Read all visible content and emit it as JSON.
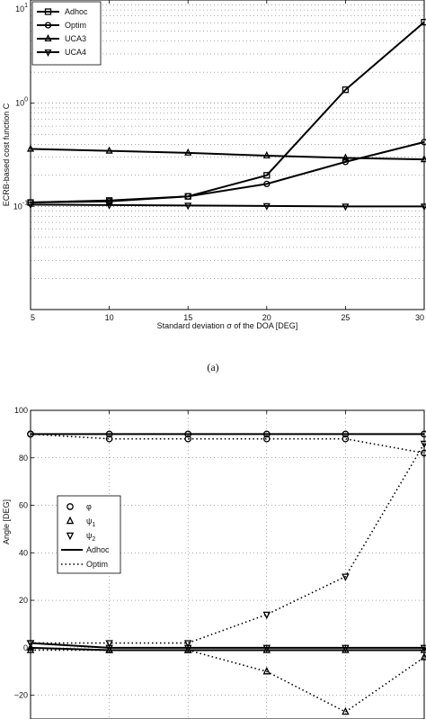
{
  "caption_a": "(a)",
  "chart_data": [
    {
      "type": "line",
      "xlabel": "Standard deviation σ of the DOA [DEG]",
      "ylabel": "ECRB-based cost function C",
      "yscale": "log",
      "x": [
        5,
        10,
        15,
        20,
        25,
        30
      ],
      "xlim": [
        5,
        30
      ],
      "ylim": [
        0.01,
        10
      ],
      "x_ticks": [
        "5",
        "10",
        "15",
        "20",
        "25",
        "30"
      ],
      "y_ticks": [
        {
          "base": "10",
          "exp": "-1",
          "value": 0.1
        },
        {
          "base": "10",
          "exp": "0",
          "value": 1
        },
        {
          "base": "10",
          "exp": "1",
          "value": 10
        }
      ],
      "grid": "y-major-and-minor",
      "legend_position": "top-left",
      "series": [
        {
          "name": "Adhoc",
          "values": [
            0.109,
            0.114,
            0.125,
            0.2,
            1.35,
            6.1
          ],
          "marker": "square",
          "dash": "solid"
        },
        {
          "name": "Optim",
          "values": [
            0.109,
            0.112,
            0.125,
            0.165,
            0.27,
            0.42
          ],
          "marker": "circle",
          "dash": "solid"
        },
        {
          "name": "UCA3",
          "values": [
            0.36,
            0.345,
            0.33,
            0.31,
            0.295,
            0.285
          ],
          "marker": "triangle-up",
          "dash": "solid"
        },
        {
          "name": "UCA4",
          "values": [
            0.104,
            0.103,
            0.102,
            0.101,
            0.1,
            0.1
          ],
          "marker": "triangle-down",
          "dash": "solid"
        }
      ]
    },
    {
      "type": "line",
      "ylabel": "Angle [DEG]",
      "x": [
        5,
        10,
        15,
        20,
        25,
        30
      ],
      "xlim": [
        5,
        30
      ],
      "ylim": [
        -30,
        100
      ],
      "y_ticks": [
        "−20",
        "0",
        "20",
        "40",
        "60",
        "80",
        "100"
      ],
      "grid": "on",
      "legend_position": "left",
      "legend": [
        {
          "label": "φ",
          "sub": "",
          "marker": "circle"
        },
        {
          "label": "ψ",
          "sub": "1",
          "marker": "triangle-up"
        },
        {
          "label": "ψ",
          "sub": "2",
          "marker": "triangle-down"
        },
        {
          "label": "Adhoc",
          "sub": "",
          "line": "solid"
        },
        {
          "label": "Optim",
          "sub": "",
          "line": "dotted"
        }
      ],
      "series": [
        {
          "quantity": "φ",
          "method": "Adhoc",
          "values": [
            90,
            90,
            90,
            90,
            90,
            90
          ],
          "marker": "circle",
          "dash": "solid"
        },
        {
          "quantity": "ψ1",
          "method": "Adhoc",
          "values": [
            0,
            -1,
            -1,
            -1,
            -1,
            -1
          ],
          "marker": "triangle-up",
          "dash": "solid"
        },
        {
          "quantity": "ψ2",
          "method": "Adhoc",
          "values": [
            2,
            0,
            0,
            0,
            0,
            0
          ],
          "marker": "triangle-down",
          "dash": "solid"
        },
        {
          "quantity": "φ",
          "method": "Optim",
          "values": [
            90,
            88,
            88,
            88,
            88,
            82
          ],
          "marker": "circle",
          "dash": "dotted"
        },
        {
          "quantity": "ψ1",
          "method": "Optim",
          "values": [
            -1,
            -1,
            -1,
            -10,
            -27,
            -4
          ],
          "marker": "triangle-up",
          "dash": "dotted"
        },
        {
          "quantity": "ψ2",
          "method": "Optim",
          "values": [
            2,
            2,
            2,
            14,
            30,
            86
          ],
          "marker": "triangle-down",
          "dash": "dotted"
        }
      ]
    }
  ]
}
